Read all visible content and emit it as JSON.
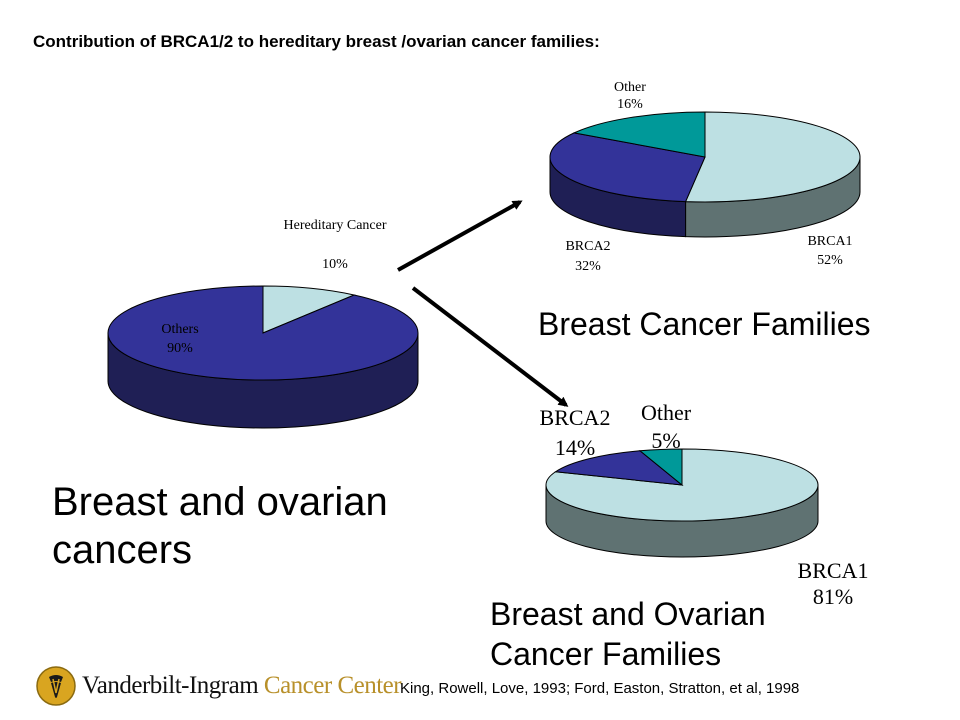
{
  "slide": {
    "title": "Contribution of BRCA1/2 to hereditary breast /ovarian cancer families:",
    "citation": "King, Rowell, Love, 1993; Ford, Easton, Stratton, et al, 1998",
    "logo": {
      "name_part1": "Vanderbilt-Ingram",
      "name_part2": "Cancer Center"
    }
  },
  "colors": {
    "light_blue": "#bde0e3",
    "light_blue_side": "#5f7272",
    "navy": "#333399",
    "navy_side": "#1f1f55",
    "teal": "#009999",
    "teal_side": "#006060",
    "logo_gold": "#b8902a"
  },
  "chart_data": [
    {
      "type": "pie",
      "title": "Breast and ovarian cancers",
      "slices": [
        {
          "label": "Hereditary Cancer",
          "value": 10,
          "value_label": "10%"
        },
        {
          "label": "Others",
          "value": 90,
          "value_label": "90%"
        }
      ]
    },
    {
      "type": "pie",
      "title": "Breast Cancer Families",
      "slices": [
        {
          "label": "BRCA1",
          "value": 52,
          "value_label": "52%"
        },
        {
          "label": "BRCA2",
          "value": 32,
          "value_label": "32%"
        },
        {
          "label": "Other",
          "value": 16,
          "value_label": "16%"
        }
      ]
    },
    {
      "type": "pie",
      "title": "Breast and Ovarian Cancer Families",
      "slices": [
        {
          "label": "BRCA1",
          "value": 81,
          "value_label": "81%"
        },
        {
          "label": "BRCA2",
          "value": 14,
          "value_label": "14%"
        },
        {
          "label": "Other",
          "value": 5,
          "value_label": "5%"
        }
      ]
    }
  ]
}
